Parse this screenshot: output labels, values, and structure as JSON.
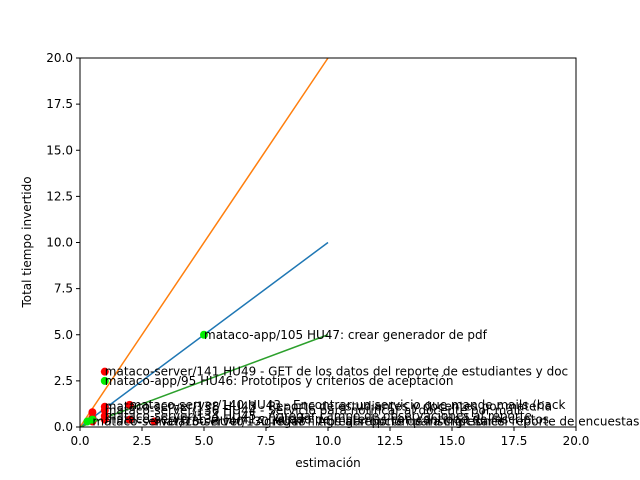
{
  "chart_data": {
    "type": "scatter",
    "xlabel": "estimación",
    "ylabel": "Total tiempo invertido",
    "xlim": [
      0,
      20
    ],
    "ylim": [
      0,
      20
    ],
    "x_ticks": [
      "0.0",
      "2.5",
      "5.0",
      "7.5",
      "10.0",
      "12.5",
      "15.0",
      "17.5",
      "20.0"
    ],
    "y_ticks": [
      "0.0",
      "2.5",
      "5.0",
      "7.5",
      "10.0",
      "12.5",
      "15.0",
      "17.5",
      "20.0"
    ],
    "grid": false,
    "colors": {
      "ratio_1": "#1f77b4",
      "ratio_2": "#ff7f0e",
      "ratio_half": "#2ca02c",
      "point_red": "#ff0000",
      "point_green": "#00ee00"
    },
    "lines": [
      {
        "color_key": "ratio_1",
        "x": [
          0,
          10
        ],
        "y": [
          0,
          10
        ]
      },
      {
        "color_key": "ratio_2",
        "x": [
          0,
          10
        ],
        "y": [
          0,
          20
        ]
      },
      {
        "color_key": "ratio_half",
        "x": [
          0,
          10
        ],
        "y": [
          0,
          5
        ]
      }
    ],
    "points": [
      {
        "x": 5,
        "y": 5,
        "color_key": "point_green",
        "label": "mataco-app/105 HU47: crear generador de pdf"
      },
      {
        "x": 1,
        "y": 3,
        "color_key": "point_red",
        "label": "mataco-server/141 HU49 - GET de los datos del reporte de estudiantes y doc"
      },
      {
        "x": 1,
        "y": 2.5,
        "color_key": "point_green",
        "label": "mataco-app/95 HU46: Prototipos y criterios de aceptación"
      },
      {
        "x": 2,
        "y": 1.2,
        "color_key": "point_red",
        "label": "mataco-server/140 HU43 - Encontrar un servicio que mande mails (back"
      },
      {
        "x": 1,
        "y": 1.1,
        "color_key": "point_red",
        "label": "mataco-server/138 HU43 - Reporte de estudiantes y docentes por materia"
      },
      {
        "x": 1,
        "y": 0.9,
        "color_key": "point_red",
        "label": "mataco-server/136 HU44 - Servicio para notificar al docente por mail"
      },
      {
        "x": 1,
        "y": 0.6,
        "color_key": "point_red",
        "label": "mataco-server/134 HU45 - Agregar campo de observaciones al reporte"
      },
      {
        "x": 1,
        "y": 0.4,
        "color_key": "point_red",
        "label": "mataco-server/132 HU41 - Listado de materias con cantidad de inscriptos"
      },
      {
        "x": 0.5,
        "y": 0.3,
        "color_key": "point_red",
        "label": "mataco-server/130 HU40 - Agregar filtros al reporte de inscripciones"
      },
      {
        "x": 3,
        "y": 0.3,
        "color_key": "point_red",
        "label": "mataco-server/130 HU48 - Agregar opción para ingresar el reporte de encuestas"
      },
      {
        "x": 0.5,
        "y": 0.8,
        "color_key": "point_red",
        "label": ""
      },
      {
        "x": 0.5,
        "y": 0.5,
        "color_key": "point_red",
        "label": ""
      },
      {
        "x": 2,
        "y": 0.4,
        "color_key": "point_red",
        "label": ""
      },
      {
        "x": 0.5,
        "y": 0.4,
        "color_key": "point_green",
        "label": ""
      },
      {
        "x": 0.3,
        "y": 0.3,
        "color_key": "point_green",
        "label": ""
      }
    ]
  }
}
